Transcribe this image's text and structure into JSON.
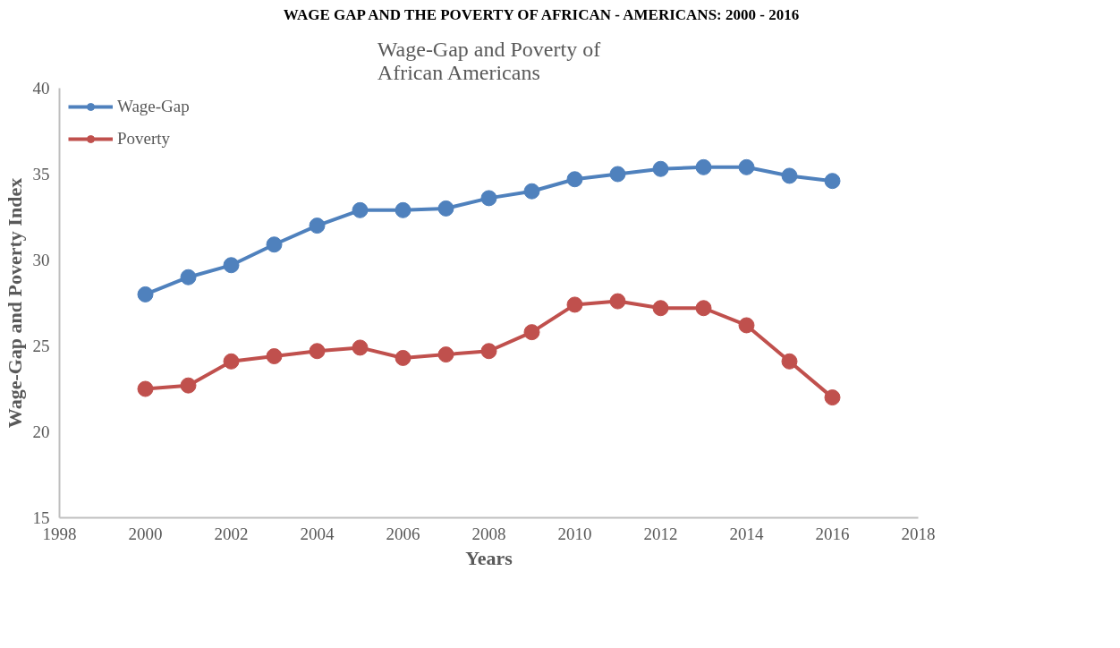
{
  "chart_data": {
    "type": "line",
    "title": "Wage-Gap and Poverty of\nAfrican Americans",
    "annotations": [
      "WAGE GAP AND THE POVERTY OF AFRICAN - AMERICANS: 2000 - 2016"
    ],
    "xlabel": "Years",
    "ylabel": "Wage-Gap and Poverty Index",
    "x": [
      2000,
      2001,
      2002,
      2003,
      2004,
      2005,
      2006,
      2007,
      2008,
      2009,
      2010,
      2011,
      2012,
      2013,
      2014,
      2015,
      2016
    ],
    "series": [
      {
        "name": "Wage-Gap",
        "color": "#4f81bd",
        "values": [
          28.0,
          29.0,
          29.7,
          30.9,
          32.0,
          32.9,
          32.9,
          33.0,
          33.6,
          34.0,
          34.7,
          35.0,
          35.3,
          35.4,
          35.4,
          34.9,
          34.6
        ]
      },
      {
        "name": "Poverty",
        "color": "#c0504d",
        "values": [
          22.5,
          22.7,
          24.1,
          24.4,
          24.7,
          24.9,
          24.3,
          24.5,
          24.7,
          25.8,
          27.4,
          27.6,
          27.2,
          27.2,
          26.2,
          24.1,
          22.0
        ]
      }
    ],
    "xlim": [
      1998,
      2018
    ],
    "xticks": [
      1998,
      2000,
      2002,
      2004,
      2006,
      2008,
      2010,
      2012,
      2014,
      2016,
      2018
    ],
    "ylim": [
      15,
      40
    ],
    "yticks": [
      15,
      20,
      25,
      30,
      35,
      40
    ],
    "grid": false,
    "legend": "left",
    "marker": "circle",
    "line_style": "solid"
  }
}
